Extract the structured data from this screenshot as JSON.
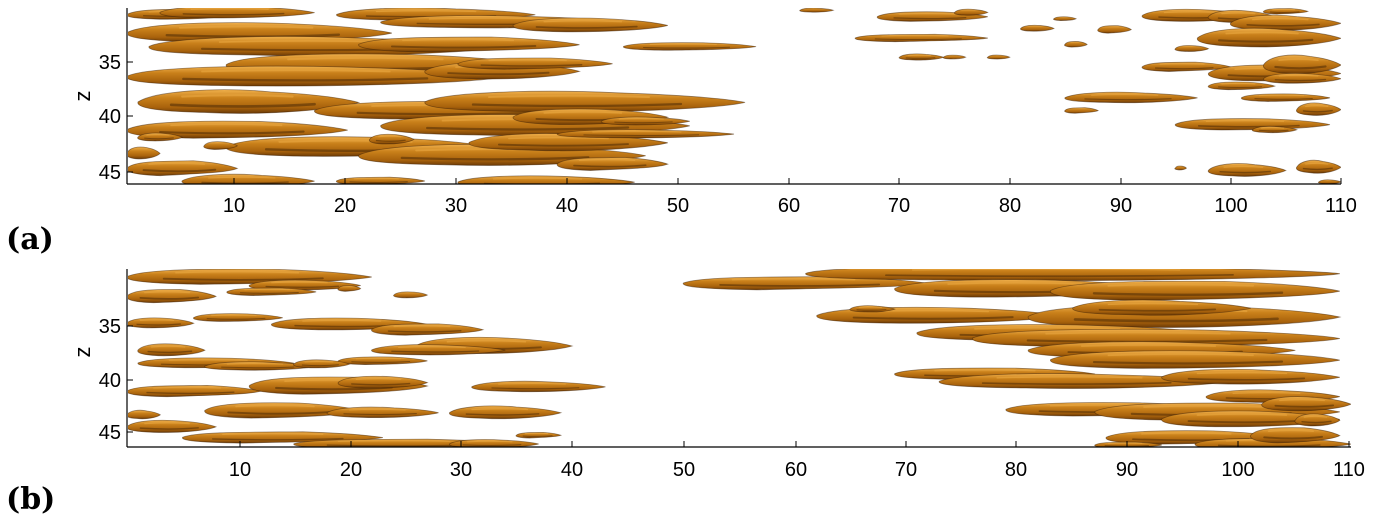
{
  "panels": [
    {
      "label": "(a)",
      "ylabel": "z",
      "x_ticks": [
        "10",
        "20",
        "30",
        "40",
        "50",
        "60",
        "70",
        "80",
        "90",
        "100",
        "110"
      ],
      "y_ticks": [
        "35",
        "40",
        "45"
      ],
      "xlim": [
        1,
        111
      ],
      "zlim": [
        30,
        46.5
      ]
    },
    {
      "label": "(b)",
      "ylabel": "z",
      "x_ticks": [
        "10",
        "20",
        "30",
        "40",
        "50",
        "60",
        "70",
        "80",
        "90",
        "100",
        "110"
      ],
      "y_ticks": [
        "35",
        "40",
        "45"
      ],
      "xlim": [
        1,
        111
      ],
      "zlim": [
        30,
        46.5
      ]
    }
  ],
  "colors": {
    "structure_fill": "#c57a14",
    "structure_light": "#e6a23c",
    "structure_dark": "#3a1e05"
  },
  "structures": [
    [
      [
        1,
        30.6,
        10,
        0.5
      ],
      [
        4,
        30.4,
        14,
        0.6
      ],
      [
        20,
        30.6,
        18,
        0.6
      ],
      [
        24,
        31.3,
        22,
        0.6
      ],
      [
        36,
        31.6,
        14,
        0.7
      ],
      [
        1,
        32.3,
        24,
        1.0
      ],
      [
        3,
        33.6,
        32,
        0.9
      ],
      [
        22,
        33.4,
        20,
        0.8
      ],
      [
        10,
        35.3,
        28,
        1.1
      ],
      [
        1,
        36.4,
        34,
        1.0
      ],
      [
        28,
        35.9,
        14,
        0.8
      ],
      [
        31,
        35.2,
        14,
        0.6
      ],
      [
        46,
        33.6,
        12,
        0.4
      ],
      [
        2,
        38.8,
        20,
        1.1
      ],
      [
        18,
        39.6,
        26,
        0.9
      ],
      [
        28,
        38.8,
        29,
        1.0
      ],
      [
        1,
        41.4,
        20,
        0.9
      ],
      [
        24,
        41.0,
        28,
        1.0
      ],
      [
        36,
        40.2,
        14,
        0.8
      ],
      [
        10,
        43.0,
        24,
        1.0
      ],
      [
        22,
        43.8,
        26,
        1.0
      ],
      [
        32,
        42.6,
        18,
        0.8
      ],
      [
        40,
        44.6,
        10,
        0.7
      ],
      [
        1,
        45.0,
        10,
        0.8
      ],
      [
        6,
        46.2,
        12,
        0.6
      ],
      [
        31,
        46.3,
        16,
        0.6
      ],
      [
        20,
        46.2,
        8,
        0.4
      ],
      [
        40,
        41.8,
        16,
        0.4
      ],
      [
        1,
        43.6,
        3,
        0.6
      ],
      [
        8,
        42.9,
        3,
        0.4
      ],
      [
        69,
        30.8,
        10,
        0.5
      ],
      [
        76,
        30.4,
        3,
        0.3
      ],
      [
        62,
        30.2,
        3,
        0.2
      ],
      [
        67,
        32.8,
        12,
        0.4
      ],
      [
        82,
        31.9,
        3,
        0.3
      ],
      [
        71,
        34.6,
        4,
        0.3
      ],
      [
        75,
        34.6,
        2,
        0.2
      ],
      [
        79,
        34.6,
        2,
        0.2
      ],
      [
        86,
        38.4,
        12,
        0.5
      ],
      [
        89,
        32.0,
        3,
        0.4
      ],
      [
        93,
        30.7,
        10,
        0.6
      ],
      [
        99,
        30.8,
        6,
        0.6
      ],
      [
        101,
        31.4,
        10,
        0.7
      ],
      [
        104,
        30.3,
        4,
        0.3
      ],
      [
        98,
        32.8,
        13,
        0.9
      ],
      [
        93,
        35.5,
        8,
        0.5
      ],
      [
        99,
        36.1,
        12,
        0.8
      ],
      [
        104,
        35.3,
        7,
        0.9
      ],
      [
        99,
        37.3,
        6,
        0.4
      ],
      [
        96,
        33.8,
        3,
        0.3
      ],
      [
        102,
        38.4,
        8,
        0.4
      ],
      [
        96,
        40.9,
        14,
        0.6
      ],
      [
        103,
        41.4,
        4,
        0.3
      ],
      [
        107,
        39.5,
        4,
        0.6
      ],
      [
        104,
        36.6,
        7,
        0.5
      ],
      [
        99,
        45.2,
        7,
        0.6
      ],
      [
        107,
        44.9,
        4,
        0.6
      ],
      [
        96,
        45.0,
        1,
        0.2
      ],
      [
        86,
        33.4,
        2,
        0.3
      ],
      [
        85,
        31.0,
        2,
        0.2
      ],
      [
        86,
        39.6,
        3,
        0.3
      ],
      [
        109,
        46.3,
        2,
        0.2
      ],
      [
        2,
        42.1,
        4,
        0.4
      ],
      [
        23,
        42.3,
        4,
        0.5
      ],
      [
        44,
        40.6,
        8,
        0.4
      ]
    ],
    [
      [
        1,
        30.7,
        22,
        0.8
      ],
      [
        12,
        31.5,
        10,
        0.5
      ],
      [
        1,
        32.5,
        8,
        0.7
      ],
      [
        10,
        32.1,
        8,
        0.4
      ],
      [
        20,
        31.8,
        2,
        0.3
      ],
      [
        25,
        32.4,
        3,
        0.3
      ],
      [
        1,
        35.0,
        6,
        0.5
      ],
      [
        7,
        34.5,
        8,
        0.4
      ],
      [
        14,
        35.1,
        14,
        0.6
      ],
      [
        23,
        35.6,
        10,
        0.6
      ],
      [
        27,
        37.1,
        14,
        0.8
      ],
      [
        23,
        37.5,
        12,
        0.5
      ],
      [
        2,
        37.5,
        6,
        0.6
      ],
      [
        2,
        38.7,
        14,
        0.5
      ],
      [
        8,
        39.0,
        10,
        0.4
      ],
      [
        20,
        38.5,
        8,
        0.4
      ],
      [
        16,
        38.8,
        5,
        0.4
      ],
      [
        12,
        40.8,
        16,
        0.9
      ],
      [
        1,
        41.3,
        12,
        0.6
      ],
      [
        20,
        40.5,
        8,
        0.6
      ],
      [
        32,
        40.9,
        12,
        0.5
      ],
      [
        8,
        43.1,
        14,
        0.8
      ],
      [
        19,
        43.3,
        10,
        0.5
      ],
      [
        30,
        43.3,
        10,
        0.6
      ],
      [
        1,
        44.6,
        8,
        0.6
      ],
      [
        6,
        45.6,
        18,
        0.6
      ],
      [
        16,
        46.2,
        20,
        0.5
      ],
      [
        30,
        46.2,
        8,
        0.4
      ],
      [
        1,
        43.5,
        3,
        0.4
      ],
      [
        36,
        45.4,
        4,
        0.3
      ],
      [
        51,
        31.3,
        22,
        0.7
      ],
      [
        62,
        30.4,
        48,
        0.7
      ],
      [
        70,
        31.8,
        24,
        0.9
      ],
      [
        84,
        32.0,
        26,
        1.0
      ],
      [
        63,
        34.3,
        22,
        0.8
      ],
      [
        82,
        34.4,
        28,
        1.1
      ],
      [
        86,
        33.6,
        16,
        0.7
      ],
      [
        72,
        35.9,
        26,
        0.8
      ],
      [
        77,
        36.4,
        33,
        0.9
      ],
      [
        82,
        37.5,
        24,
        0.8
      ],
      [
        84,
        38.4,
        26,
        0.9
      ],
      [
        70,
        39.7,
        18,
        0.6
      ],
      [
        74,
        40.4,
        26,
        0.7
      ],
      [
        94,
        40.0,
        16,
        0.7
      ],
      [
        98,
        41.8,
        12,
        0.6
      ],
      [
        80,
        43.0,
        20,
        0.7
      ],
      [
        88,
        43.2,
        22,
        0.9
      ],
      [
        94,
        43.9,
        16,
        0.8
      ],
      [
        103,
        42.5,
        8,
        0.7
      ],
      [
        89,
        45.6,
        16,
        0.7
      ],
      [
        97,
        46.2,
        14,
        0.6
      ],
      [
        102,
        45.4,
        8,
        0.8
      ],
      [
        106,
        44.0,
        4,
        0.6
      ],
      [
        88,
        46.3,
        6,
        0.3
      ],
      [
        66,
        33.7,
        4,
        0.3
      ]
    ]
  ]
}
